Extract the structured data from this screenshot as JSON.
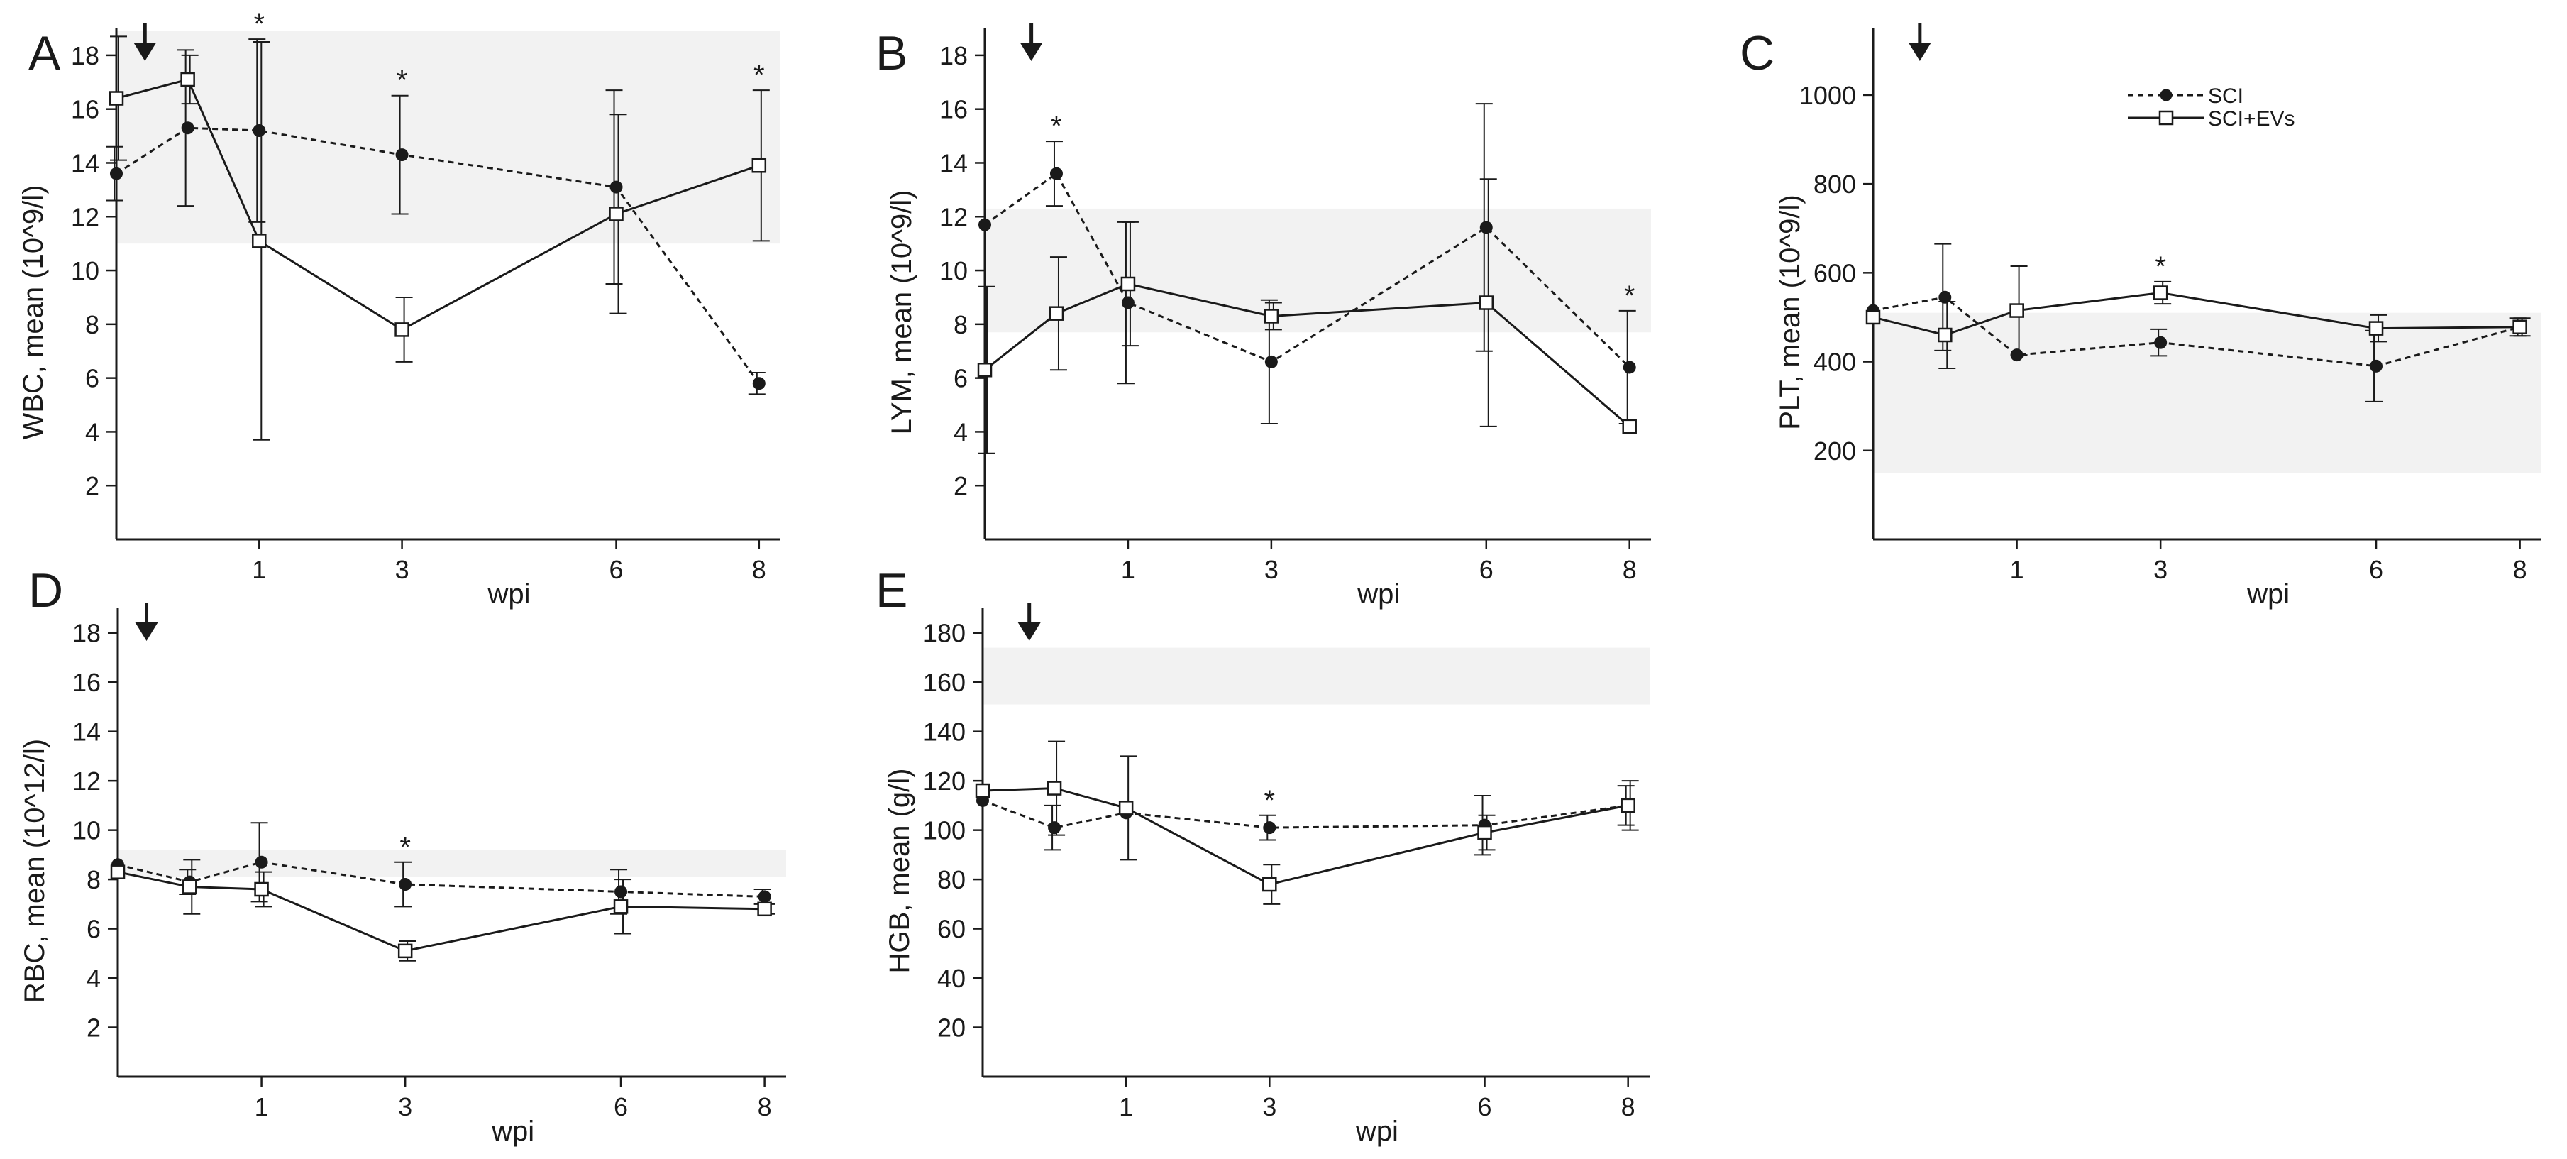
{
  "legend": [
    {
      "key": "sci",
      "label": "SCI",
      "style": "dashed",
      "marker": "filled-circle"
    },
    {
      "key": "sciev",
      "label": "SCI+EVs",
      "style": "solid",
      "marker": "open-square"
    }
  ],
  "chart_data": [
    {
      "id": "A",
      "type": "line",
      "letter": "A",
      "xlabel": "wpi",
      "ylabel": "WBC, mean (10^9/l)",
      "x_ticks": [
        1,
        3,
        6,
        8
      ],
      "xlim": [
        -1,
        8.3
      ],
      "ylim": [
        0,
        19
      ],
      "y_ticks": [
        2,
        4,
        6,
        8,
        10,
        12,
        14,
        16,
        18
      ],
      "reference_range": [
        11,
        18.9
      ],
      "x": [
        -1,
        0,
        1,
        3,
        6,
        8
      ],
      "series": [
        {
          "name": "SCI",
          "values": [
            13.6,
            15.3,
            15.2,
            14.3,
            13.1,
            5.8
          ],
          "errors": [
            1,
            2.9,
            3.4,
            2.2,
            3.6,
            0.4
          ]
        },
        {
          "name": "SCI+EVs",
          "values": [
            16.4,
            17.1,
            11.1,
            7.8,
            12.1,
            13.9
          ],
          "errors": [
            2.3,
            0.9,
            7.4,
            1.2,
            3.7,
            2.8
          ]
        }
      ],
      "significance_x": [
        1,
        3,
        8
      ],
      "arrow_x": -0.6
    },
    {
      "id": "B",
      "type": "line",
      "letter": "B",
      "xlabel": "wpi",
      "ylabel": "LYM, mean (10^9/l)",
      "x_ticks": [
        1,
        3,
        6,
        8
      ],
      "xlim": [
        -1,
        8.3
      ],
      "ylim": [
        0,
        19
      ],
      "y_ticks": [
        2,
        4,
        6,
        8,
        10,
        12,
        14,
        16,
        18
      ],
      "reference_range": [
        7.7,
        12.3
      ],
      "x": [
        -1,
        0,
        1,
        3,
        6,
        8
      ],
      "series": [
        {
          "name": "SCI",
          "values": [
            11.7,
            13.6,
            8.8,
            6.6,
            11.6,
            6.4
          ],
          "errors": [
            0,
            1.2,
            3,
            2.3,
            4.6,
            2.1
          ]
        },
        {
          "name": "SCI+EVs",
          "values": [
            6.3,
            8.4,
            9.5,
            8.3,
            8.8,
            4.2
          ],
          "errors": [
            3.1,
            2.1,
            2.3,
            0.5,
            4.6,
            0
          ]
        }
      ],
      "significance_x": [
        0,
        8
      ],
      "arrow_x": -0.35
    },
    {
      "id": "C",
      "type": "line",
      "letter": "C",
      "xlabel": "wpi",
      "ylabel": "PLT, mean (10^9/l)",
      "x_ticks": [
        1,
        3,
        6,
        8
      ],
      "xlim": [
        -1,
        8.3
      ],
      "ylim": [
        0,
        1150
      ],
      "y_ticks": [
        200,
        400,
        600,
        800,
        1000
      ],
      "reference_range": [
        150,
        510
      ],
      "x": [
        -1,
        0,
        1,
        3,
        6,
        8
      ],
      "series": [
        {
          "name": "SCI",
          "values": [
            515,
            545,
            415,
            443,
            390,
            478
          ],
          "errors": [
            0,
            120,
            0,
            30,
            80,
            20
          ]
        },
        {
          "name": "SCI+EVs",
          "values": [
            500,
            460,
            515,
            555,
            475,
            478
          ],
          "errors": [
            0,
            75,
            100,
            25,
            30,
            20
          ]
        }
      ],
      "significance_x": [
        3
      ],
      "arrow_x": -0.35
    },
    {
      "id": "D",
      "type": "line",
      "letter": "D",
      "xlabel": "wpi",
      "ylabel": "RBC, mean (10^12/l)",
      "x_ticks": [
        1,
        3,
        6,
        8
      ],
      "xlim": [
        -1,
        8.3
      ],
      "ylim": [
        0,
        19
      ],
      "y_ticks": [
        2,
        4,
        6,
        8,
        10,
        12,
        14,
        16,
        18
      ],
      "reference_range": [
        8.1,
        9.2
      ],
      "x": [
        -1,
        0,
        1,
        3,
        6,
        8
      ],
      "series": [
        {
          "name": "SCI",
          "values": [
            8.6,
            7.9,
            8.7,
            7.8,
            7.5,
            7.3
          ],
          "errors": [
            0,
            0.5,
            1.6,
            0.9,
            0.9,
            0.3
          ]
        },
        {
          "name": "SCI+EVs",
          "values": [
            8.3,
            7.7,
            7.6,
            5.1,
            6.9,
            6.8
          ],
          "errors": [
            0,
            1.1,
            0.7,
            0.4,
            1.1,
            0.2
          ]
        }
      ],
      "significance_x": [
        3
      ],
      "arrow_x": -0.6
    },
    {
      "id": "E",
      "type": "line",
      "letter": "E",
      "xlabel": "wpi",
      "ylabel": "HGB, mean (g/l)",
      "x_ticks": [
        1,
        3,
        6,
        8
      ],
      "xlim": [
        -1,
        8.3
      ],
      "ylim": [
        0,
        190
      ],
      "y_ticks": [
        20,
        40,
        60,
        80,
        100,
        120,
        140,
        160,
        180
      ],
      "reference_range": [
        151,
        174
      ],
      "x": [
        -1,
        0,
        1,
        3,
        6,
        8
      ],
      "series": [
        {
          "name": "SCI",
          "values": [
            112,
            101,
            107,
            101,
            102,
            110
          ],
          "errors": [
            0,
            9,
            0,
            5,
            12,
            8
          ]
        },
        {
          "name": "SCI+EVs",
          "values": [
            116,
            117,
            109,
            78,
            99,
            110
          ],
          "errors": [
            0,
            19,
            21,
            8,
            7,
            10
          ]
        }
      ],
      "significance_x": [
        3
      ],
      "arrow_x": -0.35
    }
  ]
}
